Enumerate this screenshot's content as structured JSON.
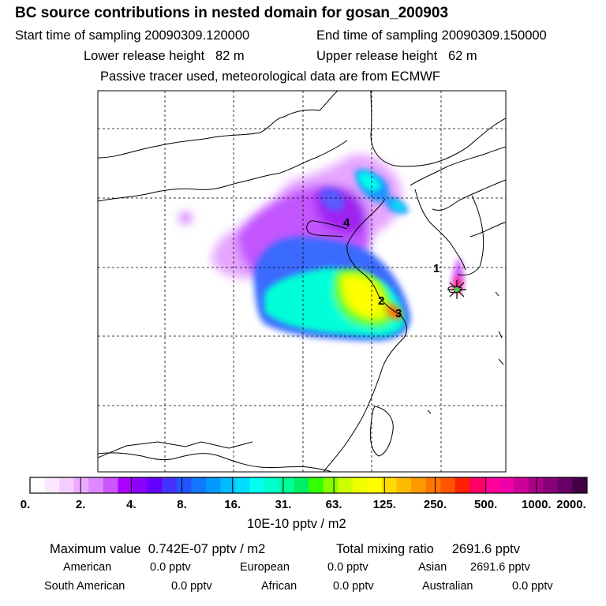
{
  "header": {
    "title": "BC  source contributions in nested domain for gosan_200903",
    "start_label": "Start time of sampling",
    "start_value": "20090309.120000",
    "end_label": "End time of sampling",
    "end_value": "20090309.150000",
    "lower_label": "Lower release height",
    "lower_value": "82 m",
    "upper_label": "Upper release height",
    "upper_value": "62 m",
    "tracer_note": "Passive tracer used, meteorological data are from ECMWF"
  },
  "map": {
    "markers": [
      {
        "label": "1"
      },
      {
        "label": "2"
      },
      {
        "label": "3"
      },
      {
        "label": "4"
      }
    ],
    "receptor_icon": "star-icon"
  },
  "colorbar": {
    "tick_labels": [
      "0.",
      "2.",
      "4.",
      "8.",
      "16.",
      "31.",
      "63.",
      "125.",
      "250.",
      "500.",
      "1000.",
      "2000."
    ],
    "colors": [
      "#ffffff",
      "#fbe6ff",
      "#f5ccff",
      "#eeaaff",
      "#dd88ff",
      "#cc55ff",
      "#aa00ff",
      "#8800ff",
      "#6600ff",
      "#4433ff",
      "#2255ff",
      "#1177ff",
      "#0099ff",
      "#00bbff",
      "#00ddff",
      "#00ffee",
      "#00ffcc",
      "#00ff99",
      "#00ee66",
      "#33ff00",
      "#88ff00",
      "#ccff00",
      "#eeff00",
      "#ffff00",
      "#ffdd00",
      "#ffbb00",
      "#ff9900",
      "#ff7700",
      "#ff5500",
      "#ff2200",
      "#ff0066",
      "#ff0099",
      "#ee00aa",
      "#cc0099",
      "#aa0088",
      "#880077",
      "#660066",
      "#440044"
    ],
    "unit": "10E-10 pptv / m2"
  },
  "stats": {
    "max_label": "Maximum value",
    "max_value": "0.742E-07 pptv / m2",
    "total_label": "Total mixing ratio",
    "total_value": "2691.6 pptv",
    "american_label": "American",
    "american_value": "0.0 pptv",
    "european_label": "European",
    "european_value": "0.0 pptv",
    "asian_label": "Asian",
    "asian_value": "2691.6 pptv",
    "south_american_label": "South American",
    "south_american_value": "0.0 pptv",
    "african_label": "African",
    "african_value": "0.0 pptv",
    "australian_label": "Australian",
    "australian_value": "0.0 pptv"
  }
}
